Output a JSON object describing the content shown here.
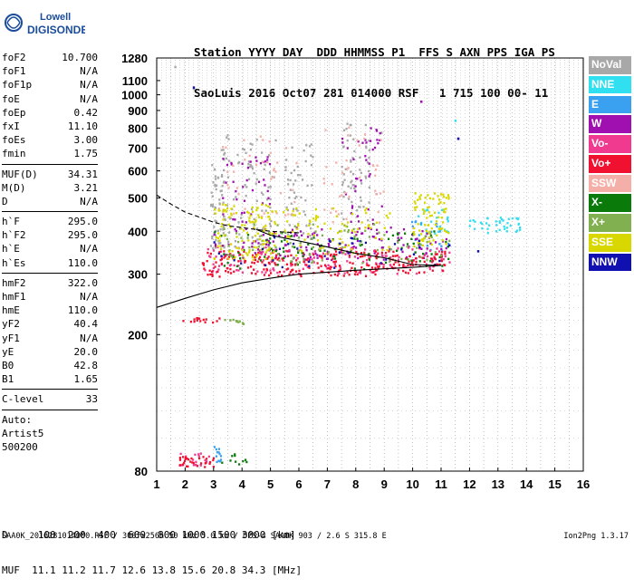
{
  "logo": {
    "line1": "Lowell",
    "line2": "DIGISONDE"
  },
  "header": {
    "labels": "Station YYYY DAY  DDD HHMMSS P1  FFS S AXN PPS IGA PS",
    "values": "SaoLuis 2016 Oct07 281 014000 RSF   1 715 100 00- 11"
  },
  "params": [
    {
      "label": "foF2",
      "value": "10.700"
    },
    {
      "label": "foF1",
      "value": "N/A"
    },
    {
      "label": "foF1p",
      "value": "N/A"
    },
    {
      "label": "foE",
      "value": "N/A"
    },
    {
      "label": "foEp",
      "value": "0.42"
    },
    {
      "label": "fxI",
      "value": "11.10"
    },
    {
      "label": "foEs",
      "value": "3.00"
    },
    {
      "label": "fmin",
      "value": "1.75"
    },
    {
      "sep": true
    },
    {
      "label": "MUF(D)",
      "value": "34.31"
    },
    {
      "label": "M(D)",
      "value": "3.21"
    },
    {
      "label": "D",
      "value": "N/A"
    },
    {
      "sep": true
    },
    {
      "label": "h`F",
      "value": "295.0"
    },
    {
      "label": "h`F2",
      "value": "295.0"
    },
    {
      "label": "h`E",
      "value": "N/A"
    },
    {
      "label": "h`Es",
      "value": "110.0"
    },
    {
      "sep": true
    },
    {
      "label": "hmF2",
      "value": "322.0"
    },
    {
      "label": "hmF1",
      "value": "N/A"
    },
    {
      "label": "hmE",
      "value": "110.0"
    },
    {
      "label": "yF2",
      "value": "40.4"
    },
    {
      "label": "yF1",
      "value": "N/A"
    },
    {
      "label": "yE",
      "value": "20.0"
    },
    {
      "label": "B0",
      "value": "42.8"
    },
    {
      "label": "B1",
      "value": "1.65"
    },
    {
      "sep": true
    },
    {
      "label": "C-level",
      "value": "33"
    },
    {
      "sep": true
    },
    {
      "text": "Auto:"
    },
    {
      "text": "Artist5"
    },
    {
      "text": "500200"
    }
  ],
  "legend": [
    {
      "label": "NoVal",
      "color": "#a8a8a8"
    },
    {
      "label": "NNE",
      "color": "#30e0f0"
    },
    {
      "label": "E",
      "color": "#3aa0f0"
    },
    {
      "label": "W",
      "color": "#a010b0"
    },
    {
      "label": "Vo-",
      "color": "#f03a90"
    },
    {
      "label": "Vo+",
      "color": "#f01030"
    },
    {
      "label": "SSW",
      "color": "#f4b0a8"
    },
    {
      "label": "X-",
      "color": "#0a7a0a"
    },
    {
      "label": "X+",
      "color": "#80b050"
    },
    {
      "label": "SSE",
      "color": "#d8d800"
    },
    {
      "label": "NNW",
      "color": "#1010b0"
    }
  ],
  "bottom": {
    "line1": "D     100  200  400  600  800 1000 1500 3000 [km]",
    "line2": "MUF  11.1 11.2 11.7 12.6 13.8 15.6 20.8 34.3 [MHz]"
  },
  "footer": "SAA0K_2016281014000.RSF / 300fx256h 50 kHz 5.0 km / DPS-4 SAA0K 903 / 2.6 S 315.8 E",
  "version": "Ion2Png 1.3.17",
  "chart_data": {
    "type": "scatter",
    "title": "",
    "xlabel": "",
    "ylabel": "",
    "xlim": [
      1,
      16
    ],
    "ylim": [
      80,
      1280
    ],
    "x_ticks": [
      1,
      2,
      3,
      4,
      5,
      6,
      7,
      8,
      9,
      10,
      11,
      12,
      13,
      14,
      15,
      16
    ],
    "y_ticks": [
      80,
      200,
      300,
      400,
      500,
      600,
      700,
      800,
      900,
      1000,
      1100,
      1280
    ],
    "y_scale": "log",
    "grid": true,
    "legend_position": "right",
    "series": [
      {
        "name": "NoVal",
        "clusters": [
          {
            "x": [
              2.9,
              3.4
            ],
            "y": [
              350,
              700
            ],
            "n": 70
          },
          {
            "x": [
              3.4,
              5.2
            ],
            "y": [
              360,
              780
            ],
            "n": 80
          },
          {
            "x": [
              5.5,
              6.5
            ],
            "y": [
              380,
              720
            ],
            "n": 50
          },
          {
            "x": [
              7.5,
              8.5
            ],
            "y": [
              420,
              840
            ],
            "n": 60
          }
        ],
        "points": [
          [
            1.65,
            1205
          ],
          [
            2.3,
            1040
          ],
          [
            8.9,
            775
          ],
          [
            10.3,
            955
          ]
        ]
      },
      {
        "name": "NNE",
        "clusters": [
          {
            "x": [
              10.2,
              11.3
            ],
            "y": [
              380,
              470
            ],
            "n": 25
          },
          {
            "x": [
              12.0,
              13.8
            ],
            "y": [
              395,
              440
            ],
            "n": 40
          }
        ],
        "points": [
          [
            11.5,
            840
          ]
        ]
      },
      {
        "name": "E",
        "clusters": [
          {
            "x": [
              3.0,
              3.5
            ],
            "y": [
              85,
              95
            ],
            "n": 12
          },
          {
            "x": [
              9.8,
              11.3
            ],
            "y": [
              350,
              440
            ],
            "n": 20
          }
        ],
        "points": []
      },
      {
        "name": "W",
        "clusters": [
          {
            "x": [
              3.0,
              11.3
            ],
            "y": [
              330,
              410
            ],
            "n": 150
          },
          {
            "x": [
              3.3,
              5.0
            ],
            "y": [
              420,
              660
            ],
            "n": 40
          },
          {
            "x": [
              7.5,
              9.0
            ],
            "y": [
              420,
              800
            ],
            "n": 40
          }
        ],
        "points": [
          [
            10.3,
            955
          ],
          [
            11.6,
            745
          ]
        ]
      },
      {
        "name": "Vo-",
        "clusters": [
          {
            "x": [
              2.6,
              11.3
            ],
            "y": [
              300,
              360
            ],
            "n": 150
          },
          {
            "x": [
              1.8,
              2.9
            ],
            "y": [
              82,
              90
            ],
            "n": 18
          }
        ],
        "points": []
      },
      {
        "name": "Vo+",
        "clusters": [
          {
            "x": [
              2.6,
              11.3
            ],
            "y": [
              295,
              350
            ],
            "n": 250
          },
          {
            "x": [
              1.8,
              3.2
            ],
            "y": [
              82,
              88
            ],
            "n": 30
          },
          {
            "x": [
              1.9,
              3.3
            ],
            "y": [
              216,
              224
            ],
            "n": 15
          }
        ],
        "points": []
      },
      {
        "name": "SSW",
        "clusters": [
          {
            "x": [
              3.0,
              6.0
            ],
            "y": [
              430,
              760
            ],
            "n": 40
          },
          {
            "x": [
              6.8,
              9.0
            ],
            "y": [
              420,
              820
            ],
            "n": 40
          }
        ],
        "points": []
      },
      {
        "name": "X-",
        "clusters": [
          {
            "x": [
              3.0,
              11.3
            ],
            "y": [
              310,
              400
            ],
            "n": 90
          },
          {
            "x": [
              3.3,
              4.2
            ],
            "y": [
              83,
              90
            ],
            "n": 10
          }
        ],
        "points": []
      },
      {
        "name": "X+",
        "clusters": [
          {
            "x": [
              3.0,
              11.3
            ],
            "y": [
              320,
              420
            ],
            "n": 90
          },
          {
            "x": [
              3.3,
              4.3
            ],
            "y": [
              214,
              222
            ],
            "n": 12
          }
        ],
        "points": []
      },
      {
        "name": "SSE",
        "clusters": [
          {
            "x": [
              3.0,
              5.2
            ],
            "y": [
              330,
              480
            ],
            "n": 120
          },
          {
            "x": [
              5.4,
              9.2
            ],
            "y": [
              340,
              470
            ],
            "n": 80
          },
          {
            "x": [
              10.0,
              11.3
            ],
            "y": [
              360,
              520
            ],
            "n": 80
          }
        ],
        "points": []
      },
      {
        "name": "NNW",
        "clusters": [
          {
            "x": [
              3.0,
              11.3
            ],
            "y": [
              310,
              390
            ],
            "n": 40
          }
        ],
        "points": [
          [
            2.3,
            1050
          ],
          [
            11.6,
            745
          ],
          [
            12.3,
            350
          ]
        ]
      }
    ],
    "curves": [
      {
        "style": "solid",
        "x": [
          1,
          2,
          3,
          4,
          5,
          6,
          7,
          8,
          9,
          10,
          11
        ],
        "y": [
          240,
          255,
          270,
          283,
          292,
          300,
          304,
          308,
          311,
          314,
          318
        ]
      },
      {
        "style": "dashed",
        "x": [
          1,
          1.5,
          2,
          2.5,
          3,
          3.5,
          4,
          4.5,
          5,
          6
        ],
        "y": [
          510,
          480,
          455,
          440,
          425,
          415,
          410,
          405,
          400,
          396
        ]
      },
      {
        "style": "solid",
        "x": [
          4.5,
          5,
          6,
          7,
          8,
          9,
          10,
          11
        ],
        "y": [
          405,
          390,
          375,
          360,
          345,
          335,
          320,
          318
        ]
      }
    ]
  }
}
